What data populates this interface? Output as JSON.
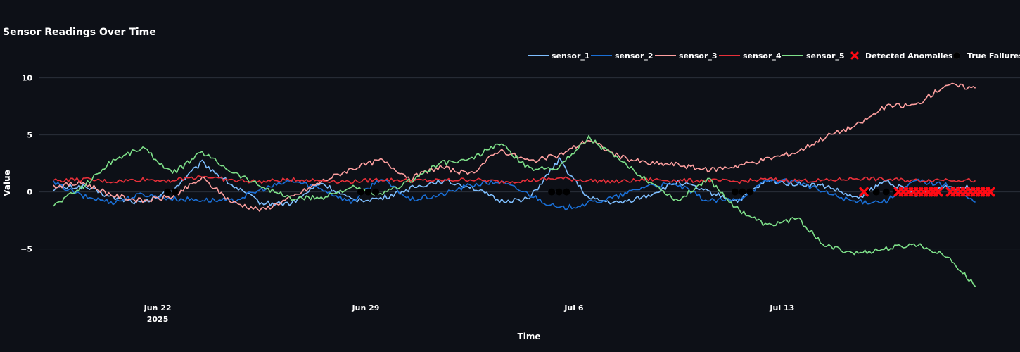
{
  "chart_data": {
    "type": "line",
    "title": "Sensor Readings Over Time",
    "xlabel": "Time",
    "ylabel": "Value",
    "x_range": [
      "2025-06-18",
      "2025-07-21"
    ],
    "ylim": [
      -9.1,
      11.4
    ],
    "y_ticks": [
      {
        "value": 10,
        "label": "10"
      },
      {
        "value": 5,
        "label": "5"
      },
      {
        "value": 0,
        "label": "0"
      },
      {
        "value": -5,
        "label": "−5"
      }
    ],
    "x_ticks": [
      {
        "date": "2025-06-22",
        "label": "Jun 22",
        "sublabel": "2025"
      },
      {
        "date": "2025-06-29",
        "label": "Jun 29",
        "sublabel": ""
      },
      {
        "date": "2025-07-06",
        "label": "Jul 6",
        "sublabel": ""
      },
      {
        "date": "2025-07-13",
        "label": "Jul 13",
        "sublabel": ""
      }
    ],
    "grid": "horizontal",
    "legend_position": "top-right",
    "series": [
      {
        "name": "sensor_1",
        "color": "#7fbfff",
        "x": [
          "2025-06-18",
          "2025-06-19",
          "2025-06-20",
          "2025-06-21",
          "2025-06-22",
          "2025-06-23",
          "2025-06-24",
          "2025-06-25",
          "2025-06-26",
          "2025-06-27",
          "2025-06-28",
          "2025-06-29",
          "2025-06-30",
          "2025-07-01",
          "2025-07-02",
          "2025-07-03",
          "2025-07-04",
          "2025-07-05",
          "2025-07-06",
          "2025-07-07",
          "2025-07-08",
          "2025-07-09",
          "2025-07-10",
          "2025-07-11",
          "2025-07-12",
          "2025-07-13",
          "2025-07-14",
          "2025-07-15",
          "2025-07-16",
          "2025-07-17",
          "2025-07-18",
          "2025-07-19"
        ],
        "y": [
          0.3,
          0.5,
          -0.5,
          -1.0,
          0.2,
          2.6,
          0.6,
          -1.0,
          -1.0,
          0.8,
          -0.7,
          -0.6,
          0.3,
          1.0,
          0.5,
          -0.8,
          -0.6,
          2.8,
          -0.6,
          -1.0,
          -0.3,
          0.9,
          0.0,
          -0.8,
          1.0,
          0.7,
          0.5,
          -0.6,
          1.0,
          -0.3,
          0.5,
          0.3
        ]
      },
      {
        "name": "sensor_2",
        "color": "#1a6fd6",
        "x": [
          "2025-06-18",
          "2025-06-19",
          "2025-06-20",
          "2025-06-21",
          "2025-06-22",
          "2025-06-23",
          "2025-06-24",
          "2025-06-25",
          "2025-06-26",
          "2025-06-27",
          "2025-06-28",
          "2025-06-29",
          "2025-06-30",
          "2025-07-01",
          "2025-07-02",
          "2025-07-03",
          "2025-07-04",
          "2025-07-05",
          "2025-07-06",
          "2025-07-07",
          "2025-07-08",
          "2025-07-09",
          "2025-07-10",
          "2025-07-11",
          "2025-07-12",
          "2025-07-13",
          "2025-07-14",
          "2025-07-15",
          "2025-07-16",
          "2025-07-17",
          "2025-07-18",
          "2025-07-19"
        ],
        "y": [
          0.8,
          -0.4,
          -0.9,
          -0.2,
          -0.6,
          -0.7,
          -0.8,
          0.2,
          1.0,
          0.3,
          -0.9,
          1.2,
          -0.7,
          -0.3,
          0.6,
          0.9,
          -0.2,
          -1.5,
          -1.0,
          -0.4,
          0.6,
          0.6,
          -0.8,
          -0.7,
          1.0,
          0.9,
          -0.1,
          -0.9,
          -0.8,
          1.0,
          0.6,
          -0.9
        ]
      },
      {
        "name": "sensor_3",
        "color": "#ffa0a0",
        "x": [
          "2025-06-18",
          "2025-06-19",
          "2025-06-20",
          "2025-06-21",
          "2025-06-22",
          "2025-06-23",
          "2025-06-24",
          "2025-06-25",
          "2025-06-26",
          "2025-06-27",
          "2025-06-28",
          "2025-06-29",
          "2025-06-30",
          "2025-07-01",
          "2025-07-02",
          "2025-07-03",
          "2025-07-04",
          "2025-07-05",
          "2025-07-06",
          "2025-07-07",
          "2025-07-08",
          "2025-07-09",
          "2025-07-10",
          "2025-07-11",
          "2025-07-12",
          "2025-07-13",
          "2025-07-14",
          "2025-07-15",
          "2025-07-16",
          "2025-07-17",
          "2025-07-18",
          "2025-07-19"
        ],
        "y": [
          0.5,
          0.8,
          -0.3,
          -0.8,
          -0.4,
          1.2,
          -0.9,
          -1.6,
          -0.5,
          0.9,
          2.0,
          2.8,
          1.2,
          2.2,
          1.5,
          3.7,
          2.7,
          3.2,
          4.6,
          3.1,
          2.5,
          2.4,
          1.9,
          2.3,
          2.9,
          3.5,
          4.9,
          5.8,
          7.5,
          7.6,
          9.4,
          9.1
        ]
      },
      {
        "name": "sensor_4",
        "color": "#e8303a",
        "x": [
          "2025-06-18",
          "2025-06-19",
          "2025-06-20",
          "2025-06-21",
          "2025-06-22",
          "2025-06-23",
          "2025-06-24",
          "2025-06-25",
          "2025-06-26",
          "2025-06-27",
          "2025-06-28",
          "2025-06-29",
          "2025-06-30",
          "2025-07-01",
          "2025-07-02",
          "2025-07-03",
          "2025-07-04",
          "2025-07-05",
          "2025-07-06",
          "2025-07-07",
          "2025-07-08",
          "2025-07-09",
          "2025-07-10",
          "2025-07-11",
          "2025-07-12",
          "2025-07-13",
          "2025-07-14",
          "2025-07-15",
          "2025-07-16",
          "2025-07-17",
          "2025-07-18",
          "2025-07-19"
        ],
        "y": [
          1.0,
          1.1,
          0.9,
          1.1,
          1.0,
          1.4,
          1.0,
          0.9,
          1.1,
          1.0,
          0.9,
          1.1,
          1.0,
          1.0,
          1.1,
          0.9,
          1.0,
          1.2,
          1.0,
          0.9,
          1.1,
          1.0,
          1.0,
          0.9,
          1.1,
          1.0,
          1.0,
          1.2,
          1.1,
          1.0,
          1.1,
          1.0
        ]
      },
      {
        "name": "sensor_5",
        "color": "#7ee089",
        "x": [
          "2025-06-18",
          "2025-06-19",
          "2025-06-20",
          "2025-06-21",
          "2025-06-22",
          "2025-06-23",
          "2025-06-24",
          "2025-06-25",
          "2025-06-26",
          "2025-06-27",
          "2025-06-28",
          "2025-06-29",
          "2025-06-30",
          "2025-07-01",
          "2025-07-02",
          "2025-07-03",
          "2025-07-04",
          "2025-07-05",
          "2025-07-06",
          "2025-07-07",
          "2025-07-08",
          "2025-07-09",
          "2025-07-10",
          "2025-07-11",
          "2025-07-12",
          "2025-07-13",
          "2025-07-14",
          "2025-07-15",
          "2025-07-16",
          "2025-07-17",
          "2025-07-18",
          "2025-07-19"
        ],
        "y": [
          -1.2,
          0.5,
          2.8,
          3.9,
          1.6,
          3.5,
          1.8,
          0.5,
          -0.6,
          -0.5,
          0.4,
          -0.3,
          1.0,
          2.5,
          2.8,
          4.3,
          2.0,
          2.2,
          4.8,
          2.8,
          1.0,
          -0.8,
          1.2,
          -1.5,
          -3.0,
          -2.3,
          -4.8,
          -5.4,
          -5.0,
          -4.6,
          -5.5,
          -8.3
        ]
      }
    ],
    "anomalies": {
      "name": "Detected Anomalies",
      "color": "#ff0a14",
      "marker": "x",
      "x": [
        "2025-07-15 18:00",
        "2025-07-16 22:00",
        "2025-07-17 02:00",
        "2025-07-17 06:00",
        "2025-07-17 10:00",
        "2025-07-17 14:00",
        "2025-07-17 18:00",
        "2025-07-17 22:00",
        "2025-07-18 02:00",
        "2025-07-18 06:00",
        "2025-07-18 16:00",
        "2025-07-18 20:00",
        "2025-07-19 00:00",
        "2025-07-19 04:00",
        "2025-07-19 08:00",
        "2025-07-19 12:00",
        "2025-07-19 16:00",
        "2025-07-19 20:00",
        "2025-07-20 00:00"
      ],
      "y": [
        0,
        0,
        0,
        0,
        0,
        0,
        0,
        0,
        0,
        0,
        0,
        0,
        0,
        0,
        0,
        0,
        0,
        0,
        0
      ]
    },
    "true_failures": {
      "name": "True Failures",
      "color": "#000000",
      "marker": "circle",
      "x": [
        "2025-06-22 08:00",
        "2025-06-22 14:00",
        "2025-06-28 20:00",
        "2025-06-29 02:00",
        "2025-06-29 08:00",
        "2025-07-05 06:00",
        "2025-07-05 12:00",
        "2025-07-05 18:00",
        "2025-07-11 10:00",
        "2025-07-11 16:00",
        "2025-07-11 22:00",
        "2025-07-15 20:00",
        "2025-07-16 04:00",
        "2025-07-16 12:00",
        "2025-07-16 20:00"
      ],
      "y": [
        0,
        0,
        0,
        0,
        0,
        0,
        0,
        0,
        0,
        0,
        0,
        0,
        0,
        0,
        0
      ]
    }
  }
}
